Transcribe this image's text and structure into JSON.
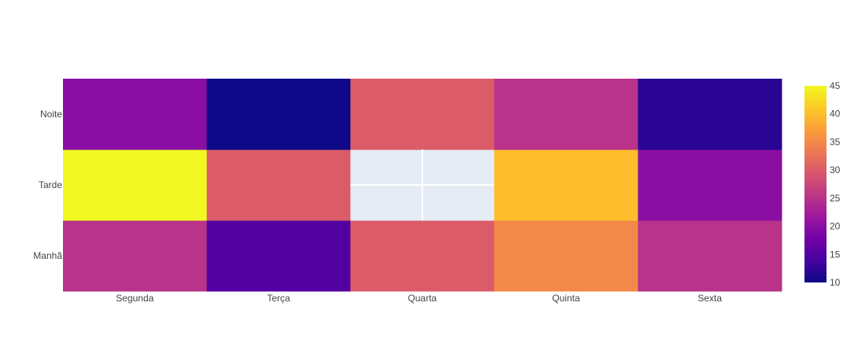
{
  "chart_data": {
    "type": "heatmap",
    "title": "",
    "xlabel": "",
    "ylabel": "",
    "x": [
      "Segunda",
      "Terça",
      "Quarta",
      "Quinta",
      "Sexta"
    ],
    "y": [
      "Manhã",
      "Tarde",
      "Noite"
    ],
    "z": [
      [
        25,
        15,
        30,
        35,
        25
      ],
      [
        45,
        30,
        null,
        40,
        20
      ],
      [
        20,
        10,
        30,
        25,
        12
      ]
    ],
    "colorscale": [
      [
        0.0,
        "#0d0887"
      ],
      [
        0.111,
        "#46039f"
      ],
      [
        0.222,
        "#7201a8"
      ],
      [
        0.333,
        "#9c179e"
      ],
      [
        0.444,
        "#bd3786"
      ],
      [
        0.556,
        "#d8576b"
      ],
      [
        0.667,
        "#ed7953"
      ],
      [
        0.778,
        "#fb9f3a"
      ],
      [
        0.889,
        "#fdca26"
      ],
      [
        1.0,
        "#f0f921"
      ]
    ],
    "zmin": 10,
    "zmax": 45,
    "colorbar_ticks": [
      "10",
      "15",
      "20",
      "25",
      "30",
      "35",
      "40",
      "45"
    ],
    "missing_cell_color": "#e5ecf6",
    "gridline_color": "#ffffff"
  }
}
